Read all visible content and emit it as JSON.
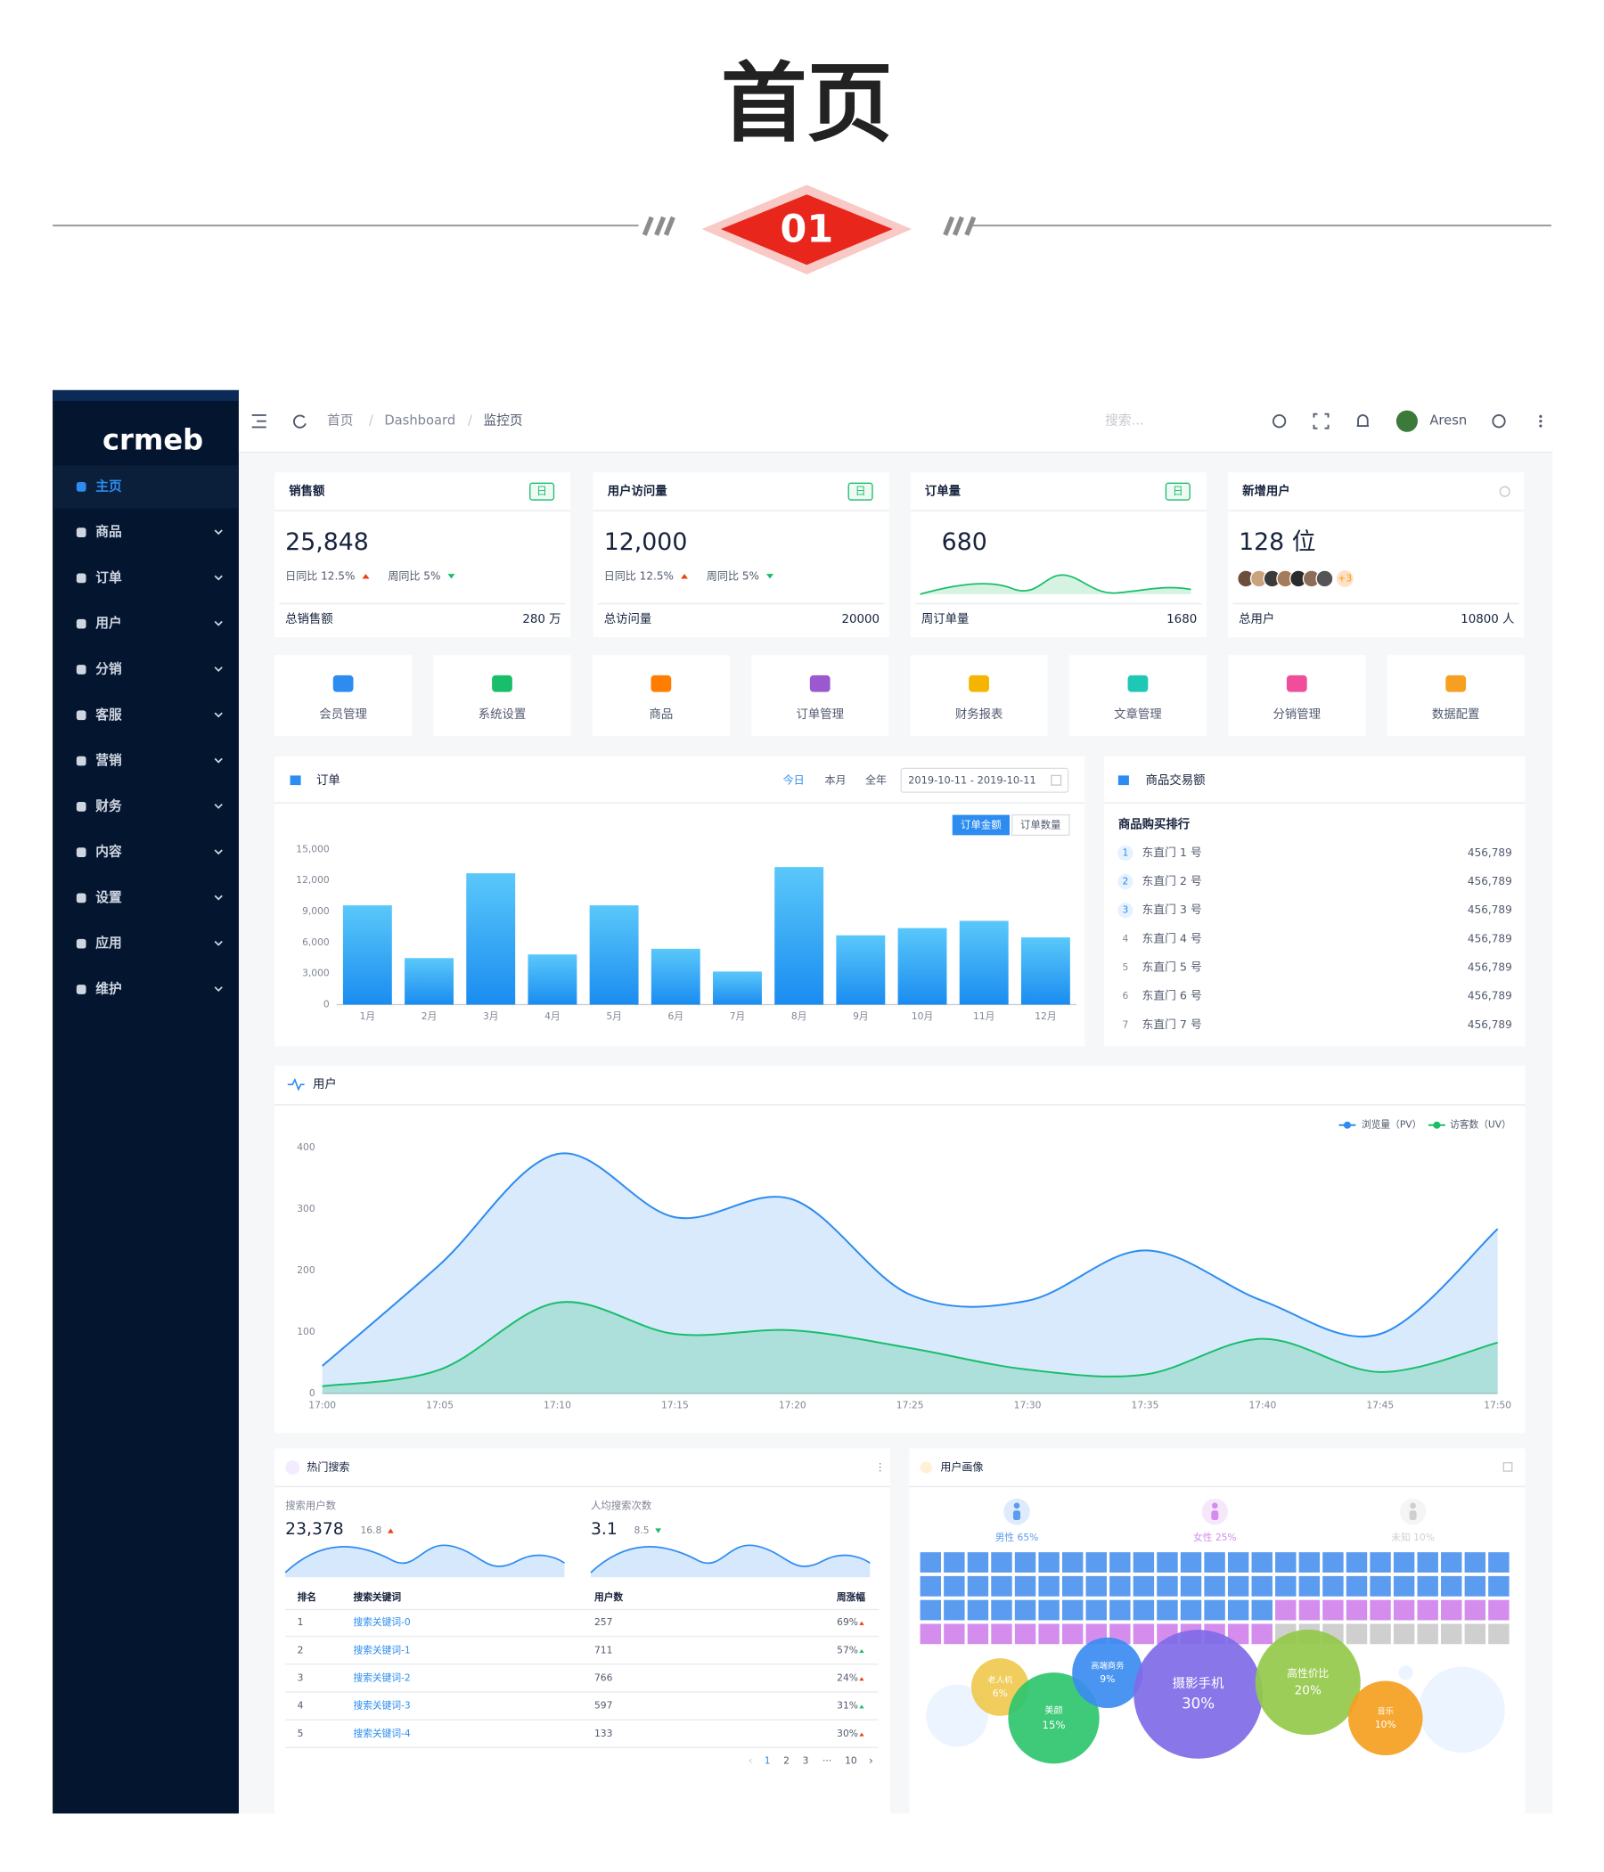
{
  "header": {
    "title": "首页",
    "badge": "01"
  },
  "sidebar": {
    "logo": "crmeb",
    "menu": [
      "主页",
      "商品",
      "订单",
      "用户",
      "分销",
      "客服",
      "营销",
      "财务",
      "内容",
      "设置",
      "应用",
      "维护"
    ]
  },
  "topbar": {
    "breadcrumbs": [
      "首页",
      "Dashboard",
      "监控页"
    ],
    "search": "搜索...",
    "user": "Aresn"
  },
  "stat_cards": [
    {
      "title": "销售额",
      "tag": "日",
      "value": "25,848",
      "day_compare": "日同比 12.5%",
      "week_compare": "周同比 5%",
      "footer_label": "总销售额",
      "footer_value": "280 万"
    },
    {
      "title": "用户访问量",
      "tag": "日",
      "value": "12,000",
      "day_compare": "日同比 12.5%",
      "week_compare": "周同比 5%",
      "footer_label": "总访问量",
      "footer_value": "20000"
    },
    {
      "title": "订单量",
      "tag": "日",
      "value": "680",
      "footer_label": "周订单量",
      "footer_value": "1680"
    },
    {
      "title": "新增用户",
      "value": "128 位",
      "avatar_more": "+3",
      "footer_label": "总用户",
      "footer_value": "10800 人"
    }
  ],
  "quick_nav": [
    "会员管理",
    "系统设置",
    "商品",
    "订单管理",
    "财务报表",
    "文章管理",
    "分销管理",
    "数据配置"
  ],
  "order_chart": {
    "type": "bar",
    "title": "订单",
    "tabs": [
      "今日",
      "本月",
      "全年"
    ],
    "date_range": "2019-10-11 - 2019-10-11",
    "toggles": [
      "订单金额",
      "订单数量"
    ],
    "categories": [
      "1月",
      "2月",
      "3月",
      "4月",
      "5月",
      "6月",
      "7月",
      "8月",
      "9月",
      "10月",
      "11月",
      "12月"
    ],
    "values": [
      9600,
      4500,
      12700,
      4850,
      9600,
      5400,
      3200,
      13300,
      6700,
      7400,
      8100,
      6500
    ],
    "color": "#2d8cf0",
    "ylim": [
      0,
      15000
    ],
    "yticks": [
      0,
      {
        "value": 3000,
        "label": "3,000"
      },
      {
        "value": 6000,
        "label": "6,000"
      },
      {
        "value": 9000,
        "label": "9,000"
      },
      {
        "value": 12000,
        "label": "12,000"
      },
      {
        "value": 15000,
        "label": "15,000"
      }
    ]
  },
  "ranking": {
    "title": "商品交易额",
    "subtitle": "商品购买排行",
    "items": [
      {
        "rank": "1",
        "name": "东直门 1 号",
        "value": "456,789"
      },
      {
        "rank": "2",
        "name": "东直门 2 号",
        "value": "456,789"
      },
      {
        "rank": "3",
        "name": "东直门 3 号",
        "value": "456,789"
      },
      {
        "rank": "4",
        "name": "东直门 4 号",
        "value": "456,789"
      },
      {
        "rank": "5",
        "name": "东直门 5 号",
        "value": "456,789"
      },
      {
        "rank": "6",
        "name": "东直门 6 号",
        "value": "456,789"
      },
      {
        "rank": "7",
        "name": "东直门 7 号",
        "value": "456,789"
      }
    ]
  },
  "user_chart": {
    "type": "line",
    "title": "用户",
    "categories": [
      "17:00",
      "17:05",
      "17:10",
      "17:15",
      "17:20",
      "17:25",
      "17:30",
      "17:35",
      "17:40",
      "17:45",
      "17:50"
    ],
    "series": [
      {
        "name": "浏览量（PV）",
        "color": "#2d8cf0",
        "values": [
          45,
          210,
          390,
          287,
          316,
          161,
          151,
          233,
          151,
          97,
          268
        ]
      },
      {
        "name": "访客数（UV）",
        "color": "#19be6b",
        "values": [
          12,
          39,
          148,
          97,
          103,
          74,
          39,
          31,
          89,
          35,
          83
        ]
      }
    ],
    "ylim": [
      0,
      400
    ],
    "yticks": [
      0,
      100,
      200,
      300,
      400
    ]
  },
  "hot_search": {
    "title": "热门搜索",
    "metrics": [
      {
        "label": "搜索用户数",
        "value": "23,378",
        "change": "16.8"
      },
      {
        "label": "人均搜索次数",
        "value": "3.1",
        "change": "8.5"
      }
    ],
    "table": {
      "headers": [
        "排名",
        "搜索关键词",
        "用户数",
        "周涨幅"
      ],
      "rows": [
        [
          "1",
          "搜索关键词-0",
          "257",
          "69%"
        ],
        [
          "2",
          "搜索关键词-1",
          "711",
          "57%"
        ],
        [
          "3",
          "搜索关键词-2",
          "766",
          "24%"
        ],
        [
          "4",
          "搜索关键词-3",
          "597",
          "31%"
        ],
        [
          "5",
          "搜索关键词-4",
          "133",
          "30%"
        ]
      ]
    },
    "pagination": [
      "1",
      "2",
      "3",
      "···",
      "10"
    ]
  },
  "portrait": {
    "title": "用户画像",
    "gender": [
      {
        "label": "男性 65%",
        "value": 65,
        "color": "#5b9bf0"
      },
      {
        "label": "女性 25%",
        "value": 25,
        "color": "#d48ded"
      },
      {
        "label": "未知 10%",
        "value": 10,
        "color": "#cfcfcf"
      }
    ],
    "bubbles": [
      {
        "name": "老人机",
        "value": 6,
        "label": "6%",
        "color": "#efc94f"
      },
      {
        "name": "美颜",
        "value": 15,
        "label": "15%",
        "color": "#2ec56e"
      },
      {
        "name": "高端商务",
        "value": 9,
        "label": "9%",
        "color": "#3b8cf0"
      },
      {
        "name": "摄影手机",
        "value": 30,
        "label": "30%",
        "color": "#7f6be8"
      },
      {
        "name": "高性价比",
        "value": 20,
        "label": "20%",
        "color": "#94c94a"
      },
      {
        "name": "音乐",
        "value": 10,
        "label": "10%",
        "color": "#f5a020"
      }
    ]
  }
}
